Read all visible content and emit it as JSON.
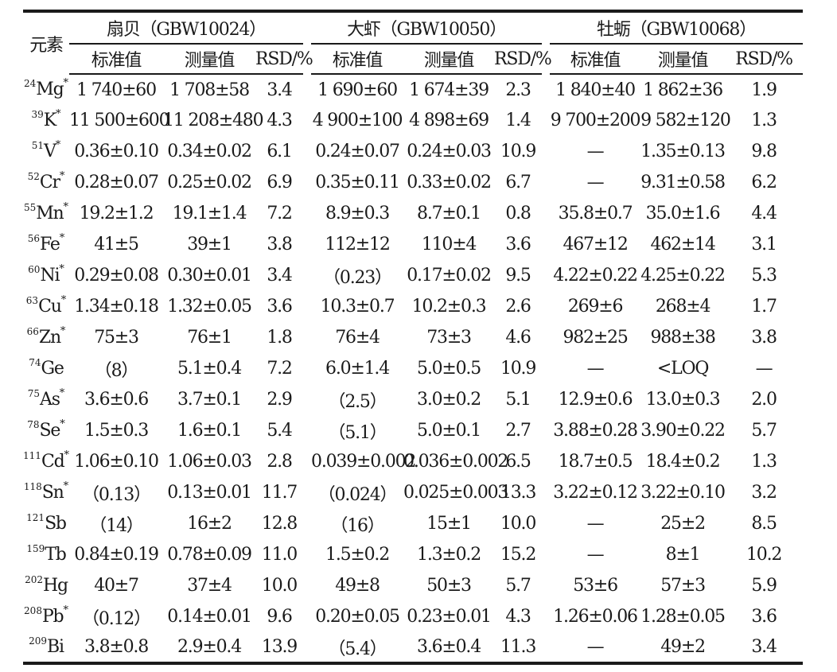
{
  "header": {
    "element_label": "元素",
    "groups": [
      "扇贝（GBW10024）",
      "大虾（GBW10050）",
      "牡蛎（GBW10068）"
    ],
    "columns": [
      "标准值",
      "测量值",
      "RSD/%"
    ]
  },
  "rows": [
    {
      "mass": "24",
      "sym": "Mg",
      "star": "*",
      "v": [
        "1 740±60",
        "1 708±58",
        "3.4",
        "1 690±60",
        "1 674±39",
        "2.3",
        "1 840±40",
        "1 862±36",
        "1.9"
      ]
    },
    {
      "mass": "39",
      "sym": "K",
      "star": "*",
      "v": [
        "11 500±600",
        "11 208±480",
        "4.3",
        "4 900±100",
        "4 898±69",
        "1.4",
        "9 700±200",
        "9 582±120",
        "1.3"
      ]
    },
    {
      "mass": "51",
      "sym": "V",
      "star": "*",
      "v": [
        "0.36±0.10",
        "0.34±0.02",
        "6.1",
        "0.24±0.07",
        "0.24±0.03",
        "10.9",
        "—",
        "1.35±0.13",
        "9.8"
      ]
    },
    {
      "mass": "52",
      "sym": "Cr",
      "star": "*",
      "v": [
        "0.28±0.07",
        "0.25±0.02",
        "6.9",
        "0.35±0.11",
        "0.33±0.02",
        "6.7",
        "—",
        "9.31±0.58",
        "6.2"
      ]
    },
    {
      "mass": "55",
      "sym": "Mn",
      "star": "*",
      "v": [
        "19.2±1.2",
        "19.1±1.4",
        "7.2",
        "8.9±0.3",
        "8.7±0.1",
        "0.8",
        "35.8±0.7",
        "35.0±1.6",
        "4.4"
      ]
    },
    {
      "mass": "56",
      "sym": "Fe",
      "star": "*",
      "v": [
        "41±5",
        "39±1",
        "3.8",
        "112±12",
        "110±4",
        "3.6",
        "467±12",
        "462±14",
        "3.1"
      ]
    },
    {
      "mass": "60",
      "sym": "Ni",
      "star": "*",
      "v": [
        "0.29±0.08",
        "0.30±0.01",
        "3.4",
        "（0.23）",
        "0.17±0.02",
        "9.5",
        "4.22±0.22",
        "4.25±0.22",
        "5.3"
      ]
    },
    {
      "mass": "63",
      "sym": "Cu",
      "star": "*",
      "v": [
        "1.34±0.18",
        "1.32±0.05",
        "3.6",
        "10.3±0.7",
        "10.2±0.3",
        "2.6",
        "269±6",
        "268±4",
        "1.7"
      ]
    },
    {
      "mass": "66",
      "sym": "Zn",
      "star": "*",
      "v": [
        "75±3",
        "76±1",
        "1.8",
        "76±4",
        "73±3",
        "4.6",
        "982±25",
        "988±38",
        "3.8"
      ]
    },
    {
      "mass": "74",
      "sym": "Ge",
      "star": "",
      "v": [
        "（8）",
        "5.1±0.4",
        "7.2",
        "6.0±1.4",
        "5.0±0.5",
        "10.9",
        "—",
        "<LOQ",
        "—"
      ]
    },
    {
      "mass": "75",
      "sym": "As",
      "star": "*",
      "v": [
        "3.6±0.6",
        "3.7±0.1",
        "2.9",
        "（2.5）",
        "3.0±0.2",
        "5.1",
        "12.9±0.6",
        "13.0±0.3",
        "2.0"
      ]
    },
    {
      "mass": "78",
      "sym": "Se",
      "star": "*",
      "v": [
        "1.5±0.3",
        "1.6±0.1",
        "5.4",
        "（5.1）",
        "5.0±0.1",
        "2.7",
        "3.88±0.28",
        "3.90±0.22",
        "5.7"
      ]
    },
    {
      "mass": "111",
      "sym": "Cd",
      "star": "*",
      "v": [
        "1.06±0.10",
        "1.06±0.03",
        "2.8",
        "0.039±0.002",
        "0.036±0.002",
        "6.5",
        "18.7±0.5",
        "18.4±0.2",
        "1.3"
      ]
    },
    {
      "mass": "118",
      "sym": "Sn",
      "star": "*",
      "v": [
        "（0.13）",
        "0.13±0.01",
        "11.7",
        "（0.024）",
        "0.025±0.003",
        "13.3",
        "3.22±0.12",
        "3.22±0.10",
        "3.2"
      ]
    },
    {
      "mass": "121",
      "sym": "Sb",
      "star": "",
      "v": [
        "（14）",
        "16±2",
        "12.8",
        "（16）",
        "15±1",
        "10.0",
        "—",
        "25±2",
        "8.5"
      ]
    },
    {
      "mass": "159",
      "sym": "Tb",
      "star": "",
      "v": [
        "0.84±0.19",
        "0.78±0.09",
        "11.0",
        "1.5±0.2",
        "1.3±0.2",
        "15.2",
        "—",
        "8±1",
        "10.2"
      ]
    },
    {
      "mass": "202",
      "sym": "Hg",
      "star": "",
      "v": [
        "40±7",
        "37±4",
        "10.0",
        "49±8",
        "50±3",
        "5.7",
        "53±6",
        "57±3",
        "5.9"
      ]
    },
    {
      "mass": "208",
      "sym": "Pb",
      "star": "*",
      "v": [
        "（0.12）",
        "0.14±0.01",
        "9.6",
        "0.20±0.05",
        "0.23±0.01",
        "4.3",
        "1.26±0.06",
        "1.28±0.05",
        "3.6"
      ]
    },
    {
      "mass": "209",
      "sym": "Bi",
      "star": "",
      "v": [
        "3.8±0.8",
        "2.9±0.4",
        "13.9",
        "（5.4）",
        "3.6±0.4",
        "11.3",
        "—",
        "49±2",
        "3.4"
      ]
    }
  ]
}
